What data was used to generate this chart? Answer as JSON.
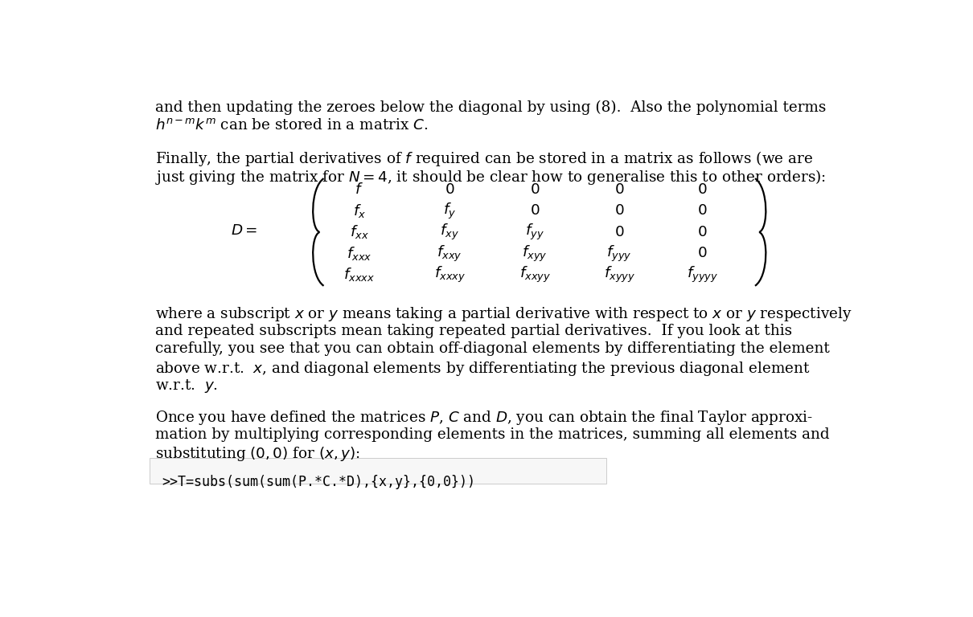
{
  "background_color": "#ffffff",
  "text_color": "#000000",
  "figsize": [
    12.1,
    7.68
  ],
  "dpi": 100,
  "para1_line1": "and then updating the zeroes below the diagonal by using (8).  Also the polynomial terms",
  "para1_line2": "$h^{n-m}k^m$ can be stored in a matrix $C$.",
  "para2_line1": "Finally, the partial derivatives of $f$ required can be stored in a matrix as follows (we are",
  "para2_line2": "just giving the matrix for $N=4$, it should be clear how to generalise this to other orders):",
  "para3_line1": "where a subscript $x$ or $y$ means taking a partial derivative with respect to $x$ or $y$ respectively",
  "para3_line2": "and repeated subscripts mean taking repeated partial derivatives.  If you look at this",
  "para3_line3": "carefully, you see that you can obtain off-diagonal elements by differentiating the element",
  "para3_line4": "above w.r.t.  $x$, and diagonal elements by differentiating the previous diagonal element",
  "para3_line5": "w.r.t.  $y$.",
  "para4_line1": "Once you have defined the matrices $P$, $C$ and $D$, you can obtain the final Taylor approxi-",
  "para4_line2": "mation by multiplying corresponding elements in the matrices, summing all elements and",
  "para4_line3": "substituting $(0,0)$ for $(x,y)$:",
  "code_line": ">>T=subs(sum(sum(P.*C.*D),{x,y},{0,0}))",
  "matrix_label": "$D=$",
  "matrix_row1": [
    "$f$",
    "$0$",
    "$0$",
    "$0$",
    "$0$"
  ],
  "matrix_row2": [
    "$f_x$",
    "$f_y$",
    "$0$",
    "$0$",
    "$0$"
  ],
  "matrix_row3": [
    "$f_{xx}$",
    "$f_{xy}$",
    "$f_{yy}$",
    "$0$",
    "$0$"
  ],
  "matrix_row4": [
    "$f_{xxx}$",
    "$f_{xxy}$",
    "$f_{xyy}$",
    "$f_{yyy}$",
    "$0$"
  ],
  "matrix_row5": [
    "$f_{xxxx}$",
    "$f_{xxxy}$",
    "$f_{xxyy}$",
    "$f_{xyyy}$",
    "$f_{yyyy}$"
  ]
}
